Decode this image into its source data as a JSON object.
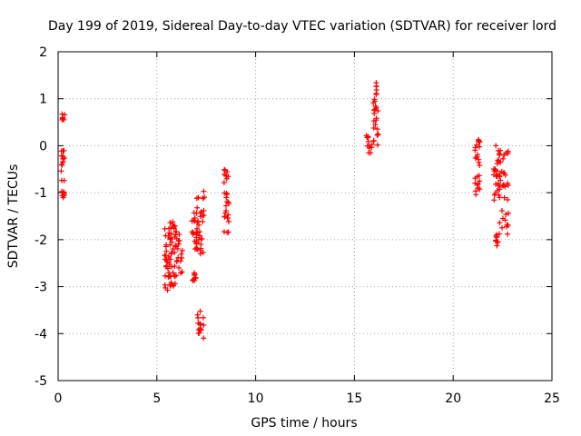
{
  "chart_data": {
    "type": "scatter",
    "title": "Day 199 of 2019, Sidereal Day-to-day VTEC variation (SDTVAR) for receiver lord",
    "xlabel": "GPS time / hours",
    "ylabel": "SDTVAR / TECUs",
    "xlim": [
      0,
      25
    ],
    "ylim": [
      -5,
      2
    ],
    "xticks": [
      0,
      5,
      10,
      15,
      20,
      25
    ],
    "yticks": [
      -5,
      -4,
      -3,
      -2,
      -1,
      0,
      1,
      2
    ],
    "grid": true,
    "marker": "+",
    "color": "#ff0000",
    "series": [
      {
        "name": "SDTVAR",
        "clusters": [
          {
            "x": [
              0.2,
              0.35
            ],
            "y": [
              0.55,
              0.68
            ]
          },
          {
            "x": [
              0.15,
              0.35
            ],
            "y": [
              -0.75,
              -0.1
            ]
          },
          {
            "x": [
              0.15,
              0.35
            ],
            "y": [
              -1.15,
              -0.95
            ]
          },
          {
            "x": [
              5.4,
              5.7
            ],
            "y": [
              -3.1,
              -1.7
            ]
          },
          {
            "x": [
              5.6,
              5.95
            ],
            "y": [
              -3.0,
              -1.6
            ]
          },
          {
            "x": [
              5.9,
              6.3
            ],
            "y": [
              -3.0,
              -1.8
            ]
          },
          {
            "x": [
              6.75,
              7.05
            ],
            "y": [
              -2.2,
              -1.4
            ]
          },
          {
            "x": [
              6.75,
              7.0
            ],
            "y": [
              -2.9,
              -2.7
            ]
          },
          {
            "x": [
              7.0,
              7.4
            ],
            "y": [
              -2.4,
              -0.95
            ]
          },
          {
            "x": [
              7.05,
              7.4
            ],
            "y": [
              -4.1,
              -3.5
            ]
          },
          {
            "x": [
              8.4,
              8.65
            ],
            "y": [
              -0.8,
              -0.5
            ]
          },
          {
            "x": [
              8.4,
              8.65
            ],
            "y": [
              -1.9,
              -1.0
            ]
          },
          {
            "x": [
              15.6,
              15.9
            ],
            "y": [
              -0.2,
              0.25
            ]
          },
          {
            "x": [
              15.95,
              16.2
            ],
            "y": [
              0.0,
              1.35
            ]
          },
          {
            "x": [
              21.1,
              21.35
            ],
            "y": [
              -1.05,
              0.25
            ]
          },
          {
            "x": [
              22.05,
              22.4
            ],
            "y": [
              -1.2,
              0.05
            ]
          },
          {
            "x": [
              22.1,
              22.35
            ],
            "y": [
              -2.15,
              -1.85
            ]
          },
          {
            "x": [
              22.3,
              22.8
            ],
            "y": [
              -1.9,
              -0.1
            ]
          }
        ]
      }
    ]
  }
}
